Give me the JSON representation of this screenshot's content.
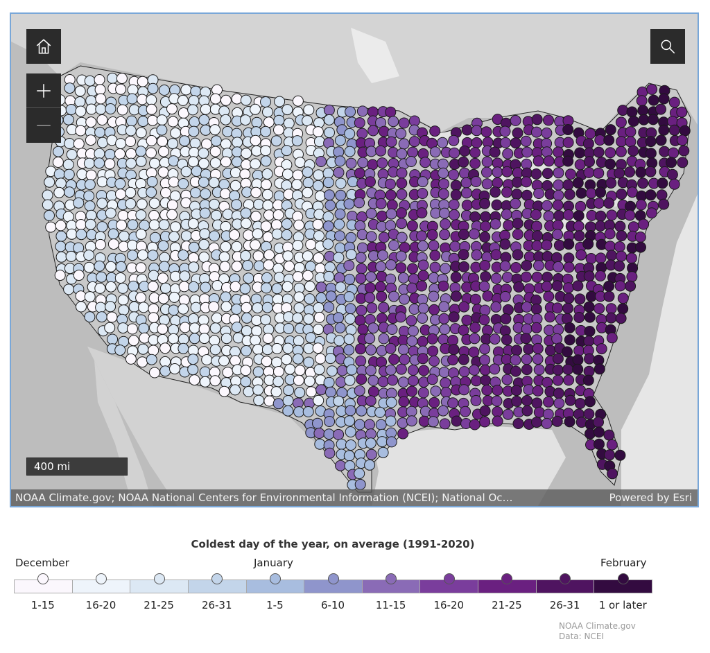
{
  "map": {
    "scale_label": "400 mi",
    "attribution": "NOAA Climate.gov; NOAA National Centers for Environmental Information (NCEI); National Oc…",
    "powered_by": "Powered by Esri",
    "icons": {
      "home": "home-icon",
      "zoom_in": "plus-icon",
      "zoom_out": "minus-icon",
      "search": "search-icon"
    },
    "colors": {
      "land": "#cfcfcf",
      "foreign_land": "#d6d6d6",
      "water": "#ececec",
      "dot_outline": "#1a1a1a"
    }
  },
  "legend": {
    "title": "Coldest day of the year, on average (1991-2020)",
    "months": {
      "december": "December",
      "january": "January",
      "february": "February"
    },
    "classes": [
      {
        "label": "1-15",
        "color": "#fbf7fd"
      },
      {
        "label": "16-20",
        "color": "#eef4fb"
      },
      {
        "label": "21-25",
        "color": "#dce8f4"
      },
      {
        "label": "26-31",
        "color": "#c3d5ea"
      },
      {
        "label": "1-5",
        "color": "#a8bddf"
      },
      {
        "label": "6-10",
        "color": "#8f95cc"
      },
      {
        "label": "11-15",
        "color": "#8a6bb6"
      },
      {
        "label": "16-20",
        "color": "#7a3d9c"
      },
      {
        "label": "21-25",
        "color": "#6a2080"
      },
      {
        "label": "26-31",
        "color": "#4f1460"
      },
      {
        "label": "1 or later",
        "color": "#330b40"
      }
    ]
  },
  "credit": {
    "line1": "NOAA Climate.gov",
    "line2": "Data: NCEI"
  }
}
